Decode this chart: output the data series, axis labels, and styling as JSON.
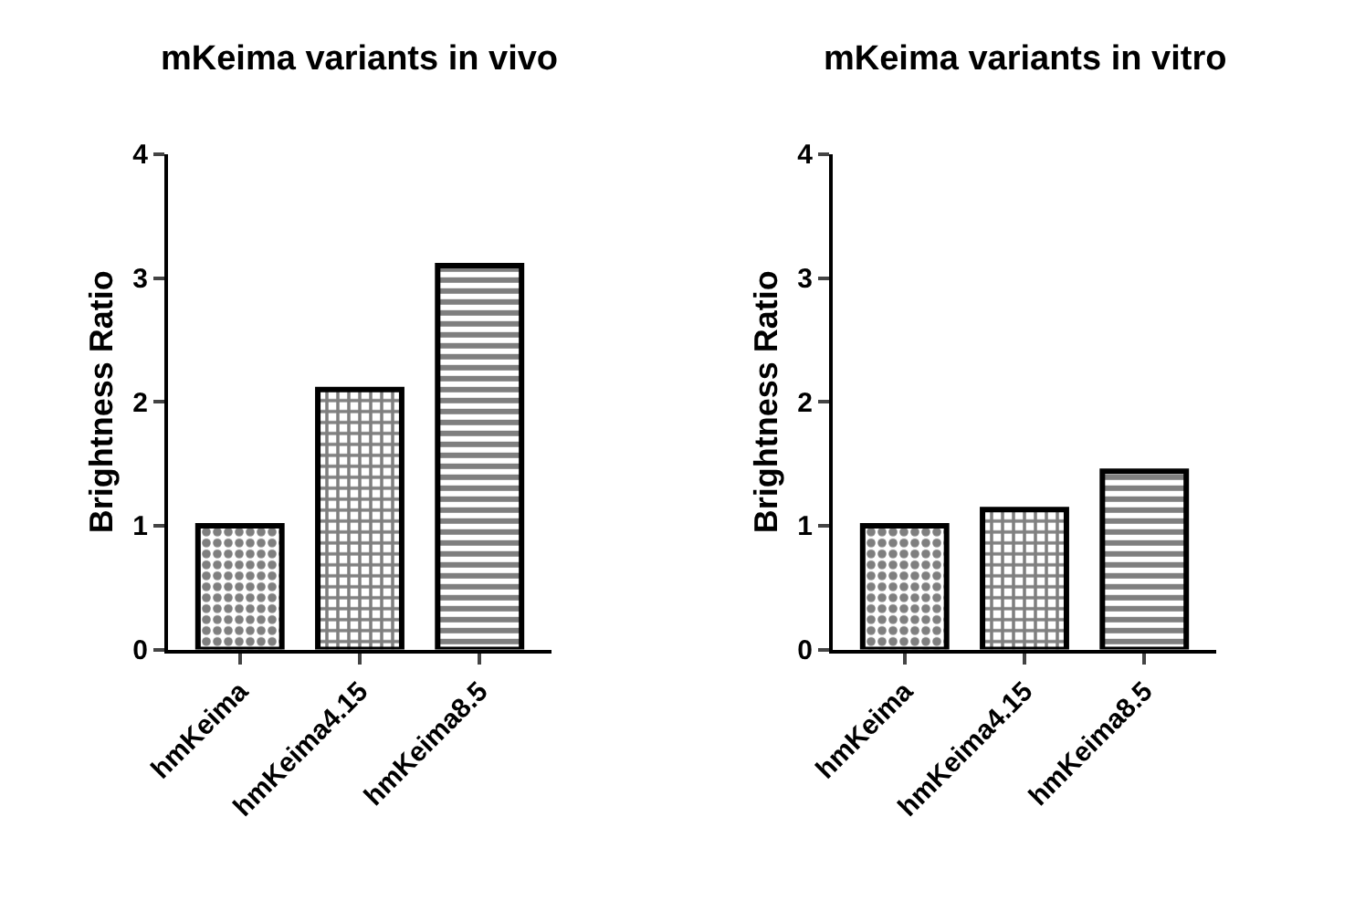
{
  "chart_data": [
    {
      "type": "bar",
      "title": "mKeima variants in vivo",
      "ylabel": "Brightness Ratio",
      "categories": [
        "hmKeima",
        "hmKeima4.15",
        "hmKeima8.5"
      ],
      "values": [
        1.0,
        2.1,
        3.1
      ],
      "colors": [
        "#000000",
        "#000000",
        "#000000"
      ],
      "ylim": [
        0,
        4
      ],
      "yticks": [
        0,
        1,
        2,
        3,
        4
      ]
    },
    {
      "type": "bar",
      "title": "mKeima variants in vitro",
      "ylabel": "Brightness Ratio",
      "categories": [
        "hmKeima",
        "hmKeima4.15",
        "hmKeima8.5"
      ],
      "values": [
        1.0,
        1.13,
        1.44
      ],
      "colors": [
        "#000000",
        "#000000",
        "#000000"
      ],
      "ylim": [
        0,
        4
      ],
      "yticks": [
        0,
        1,
        2,
        3,
        4
      ]
    }
  ]
}
